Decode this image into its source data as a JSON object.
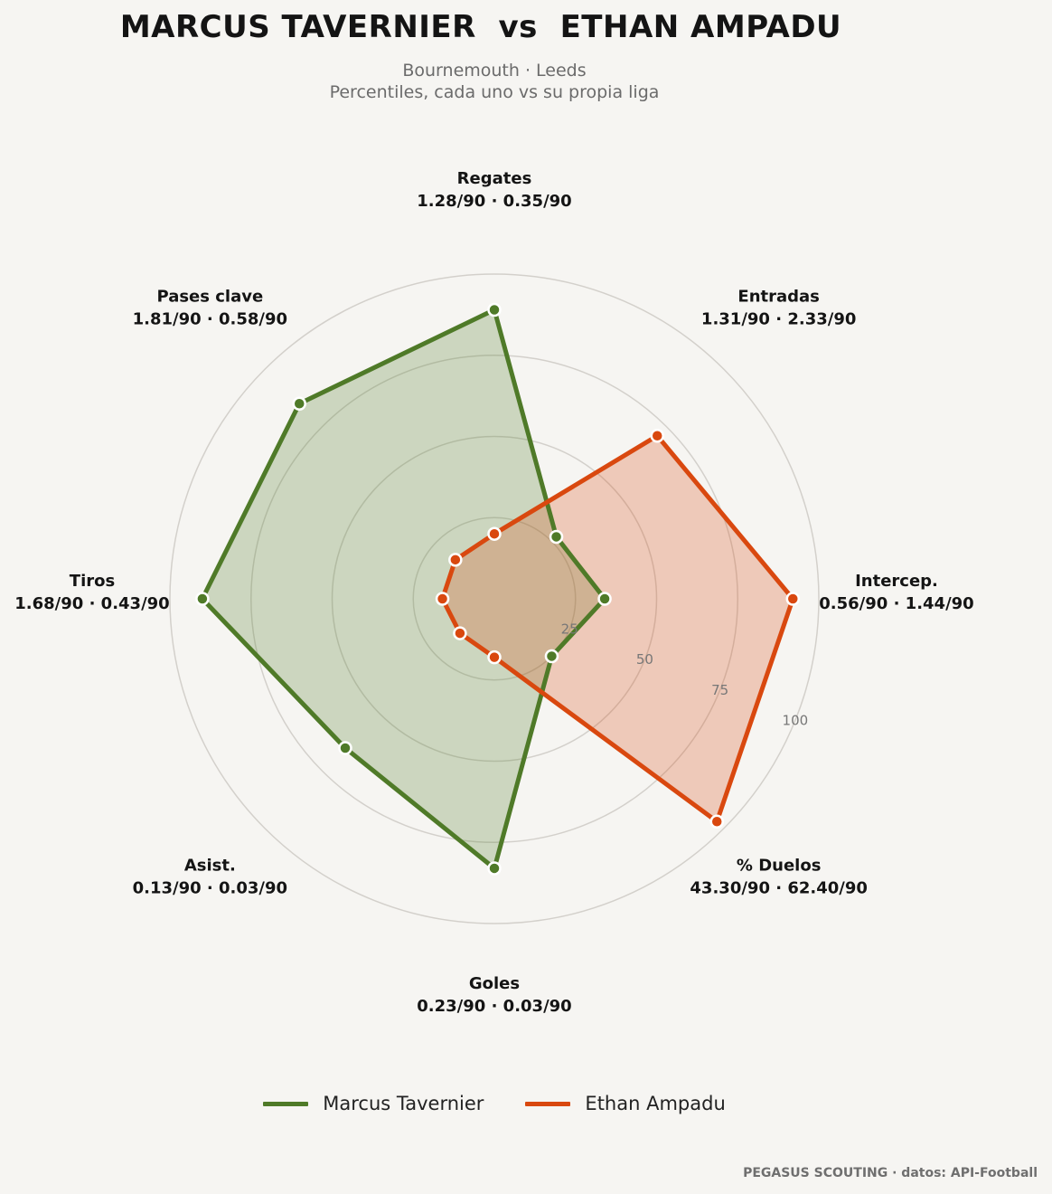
{
  "header": {
    "title": "MARCUS TAVERNIER  vs  ETHAN AMPADU",
    "subtitle_line1": "Bournemouth · Leeds",
    "subtitle_line2": "Percentiles, cada uno vs su propia liga"
  },
  "footer": {
    "credit": "PEGASUS SCOUTING · datos: API-Football"
  },
  "colors": {
    "background": "#f6f5f2",
    "tavernier": "#4f7a28",
    "ampadu": "#d9480f",
    "grid": "#d3d0cb"
  },
  "chart_data": {
    "type": "radar",
    "rmax": 100,
    "ticks": [
      25,
      50,
      75,
      100
    ],
    "axes": [
      {
        "name": "Regates",
        "values_text": "1.28/90 · 0.35/90"
      },
      {
        "name": "Entradas",
        "values_text": "1.31/90 · 2.33/90"
      },
      {
        "name": "Intercep.",
        "values_text": "0.56/90 · 1.44/90"
      },
      {
        "name": "% Duelos",
        "values_text": "43.30/90 · 62.40/90"
      },
      {
        "name": "Goles",
        "values_text": "0.23/90 · 0.03/90"
      },
      {
        "name": "Asist.",
        "values_text": "0.13/90 · 0.03/90"
      },
      {
        "name": "Tiros",
        "values_text": "1.68/90 · 0.43/90"
      },
      {
        "name": "Pases clave",
        "values_text": "1.81/90 · 0.58/90"
      }
    ],
    "series": [
      {
        "name": "Marcus Tavernier",
        "color": "#4f7a28",
        "values": [
          89,
          27,
          34,
          25,
          83,
          65,
          90,
          85
        ]
      },
      {
        "name": "Ethan Ampadu",
        "color": "#d9480f",
        "values": [
          20,
          71,
          92,
          97,
          18,
          15,
          16,
          17
        ]
      }
    ],
    "legend_position": "bottom-center"
  }
}
